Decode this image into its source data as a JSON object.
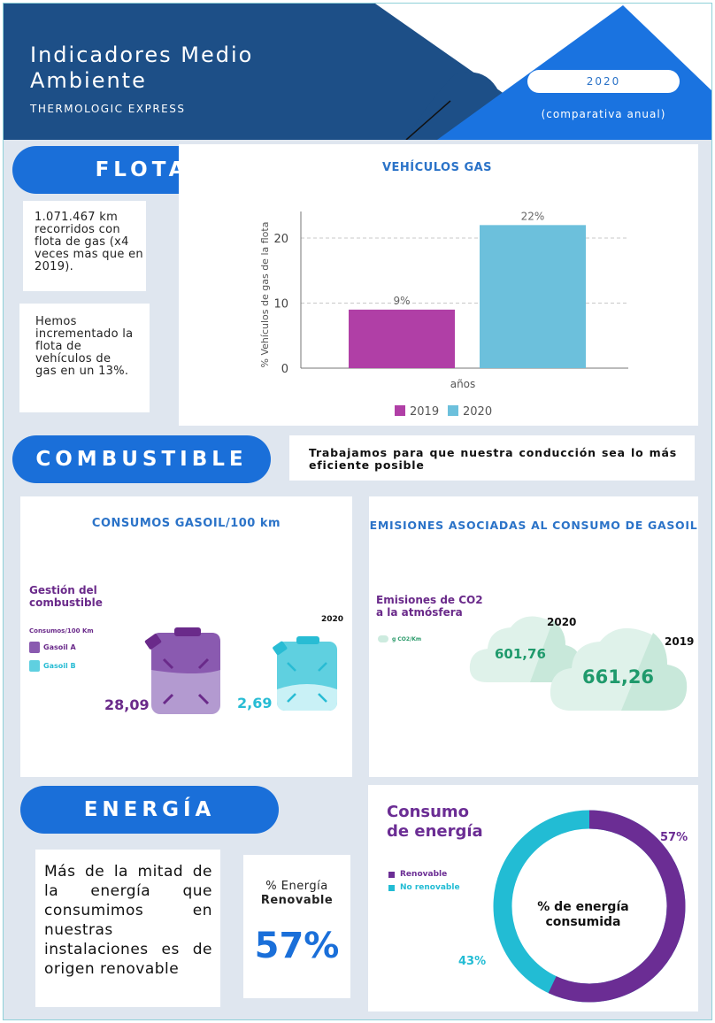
{
  "header": {
    "title_line1": "Indicadores Medio",
    "title_line2": "Ambiente",
    "subtitle": "THERMOLOGIC EXPRESS",
    "year": "2020",
    "year_note": "(comparativa anual)"
  },
  "flota": {
    "section_label": "FLOTA",
    "note1": "1.071.467 km recorridos con flota de gas (x4 veces mas que en 2019).",
    "note2": "Hemos incrementado la flota de vehículos de gas en un 13%."
  },
  "chart_data": {
    "type": "bar",
    "title": "VEHÍCULOS GAS",
    "xlabel": "años",
    "ylabel": "% Vehículos de gas de la flota",
    "ylim": [
      0,
      23
    ],
    "yticks": [
      0,
      10,
      20
    ],
    "grid": true,
    "legend_position": "bottom",
    "series": [
      {
        "name": "2019",
        "values": [
          9
        ],
        "label": "9%",
        "color": "#b03fa6"
      },
      {
        "name": "2020",
        "values": [
          22
        ],
        "label": "22%",
        "color": "#6cc0dc"
      }
    ]
  },
  "combustible": {
    "section_label": "COMBUSTIBLE",
    "statement": "Trabajamos para que nuestra conducción sea lo más eficiente posible",
    "consumos": {
      "title": "CONSUMOS GASOIL/100 km",
      "heading_line1": "Gestión del",
      "heading_line2": "combustible",
      "legend_title": "Consumos/100 Km",
      "legend_a": "Gasoil A",
      "legend_b": "Gasoil B",
      "year_label": "2020",
      "value_a": "28,09",
      "value_b": "2,69",
      "color_a": "#6a2a8a",
      "color_b": "#28bcd4"
    },
    "emisiones": {
      "title": "EMISIONES ASOCIADAS AL CONSUMO DE GASOIL",
      "heading_line1": "Emisiones de CO2",
      "heading_line2": "a la atmósfera",
      "legend": "g CO2/Km",
      "year_2020": "2020",
      "value_2020": "601,76",
      "year_2019": "2019",
      "value_2019": "661,26"
    }
  },
  "energia": {
    "section_label": "ENERGÍA",
    "text": "Más de la mitad de la energía que consumimos en nuestras instalaciones es de origen renovable",
    "kpi_label_line1": "% Energía",
    "kpi_label_line2": "Renovable",
    "kpi_value": "57%",
    "donut": {
      "title_line1": "Consumo",
      "title_line2": "de energía",
      "legend_renovable": "Renovable",
      "legend_no_renovable": "No renovable",
      "center_line1": "% de energía",
      "center_line2": "consumida",
      "renovable_pct": 57,
      "no_renovable_pct": 43,
      "label_renovable": "57%",
      "label_no_renovable": "43%",
      "color_renovable": "#6b2d94",
      "color_no_renovable": "#22bcd4"
    }
  }
}
